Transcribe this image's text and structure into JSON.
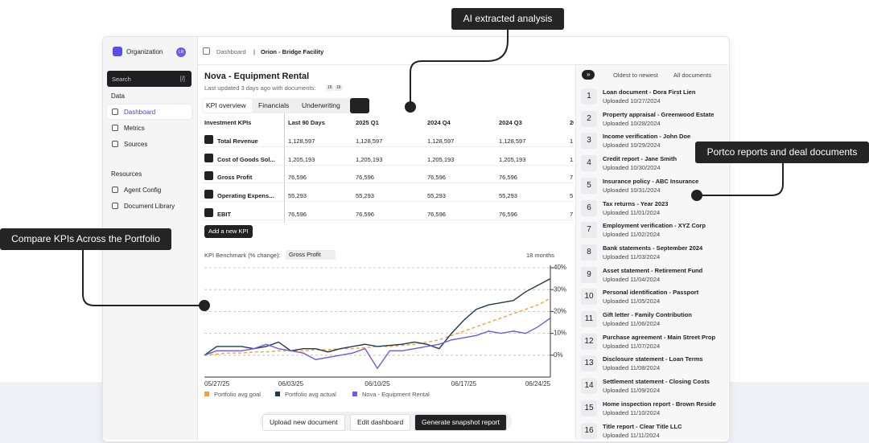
{
  "callouts": [
    "AI extracted analysis",
    "Portco reports and deal documents",
    "Compare KPIs Across the Portfolio"
  ],
  "sidebar": {
    "org": "Organization",
    "avatar": "LR",
    "search": "Search",
    "search_key": "[/]",
    "data_heading": "Data",
    "data_items": [
      "Dashboard",
      "Metrics",
      "Sources"
    ],
    "resources_heading": "Resources",
    "resources_items": [
      "Agent Config",
      "Document Library"
    ]
  },
  "breadcrumb": [
    "Dashboard",
    "|",
    "Orion - Bridge Facility"
  ],
  "header": {
    "title": "Nova - Equipment Rental",
    "updated": "Last updated 3 days ago with documents:",
    "badges": [
      "15",
      "16"
    ]
  },
  "tabs": [
    "KPI overview",
    "Financials",
    "Underwriting"
  ],
  "table": {
    "columns": [
      "Investment KPIs",
      "Last 90 Days",
      "2025 Q1",
      "2024 Q4",
      "2024 Q3",
      "20"
    ],
    "rows": [
      [
        "Total Revenue",
        "1,128,597",
        "1,128,597",
        "1,128,597",
        "1,128,597",
        "1,1"
      ],
      [
        "Cost of Goods Sol...",
        "1,205,193",
        "1,205,193",
        "1,205,193",
        "1,205,193",
        "1,"
      ],
      [
        "Gross Profit",
        "76,596",
        "76,596",
        "76,596",
        "76,596",
        "7"
      ],
      [
        "Operating Expens...",
        "55,293",
        "55,293",
        "55,293",
        "55,293",
        "5"
      ],
      [
        "EBIT",
        "76,596",
        "76,596",
        "76,596",
        "76,596",
        "7"
      ]
    ]
  },
  "add_kpi": "Add a new KPI",
  "chart_data": {
    "type": "line",
    "title": "KPI Benchmark (% change):",
    "metric": "Gross Profit",
    "range": "18 months",
    "categories": [
      "05/27/25",
      null,
      null,
      null,
      null,
      null,
      null,
      "06/03/25",
      null,
      null,
      null,
      null,
      null,
      null,
      "06/10/25",
      null,
      null,
      null,
      null,
      null,
      null,
      "06/17/25",
      null,
      null,
      null,
      null,
      null,
      null,
      "06/24/25"
    ],
    "series": [
      {
        "name": "Portfolio avg goal",
        "color": "#f5a03a",
        "dashed": true,
        "values": [
          0,
          0.5,
          1,
          1,
          1.5,
          1.5,
          2,
          2,
          2,
          2.5,
          2.5,
          3,
          3,
          3.5,
          4,
          4,
          4.5,
          5,
          6,
          7,
          9,
          11,
          13,
          15,
          17,
          19,
          21,
          23,
          26
        ]
      },
      {
        "name": "Portfolio avg actual",
        "color": "#1f3a4d",
        "values": [
          0,
          4,
          4,
          4,
          3,
          4,
          6,
          2,
          3,
          3,
          1.5,
          3,
          4,
          5,
          4,
          4.5,
          5,
          6,
          5,
          3,
          10,
          16,
          21,
          23,
          24,
          25,
          29,
          32,
          35
        ]
      },
      {
        "name": "Nova - Equipment Rental",
        "color": "#6b5ce7",
        "values": [
          0,
          2,
          2,
          2,
          3,
          5,
          3,
          2,
          1,
          -2,
          -1,
          0,
          1,
          3,
          -6,
          2,
          2,
          3,
          4,
          5,
          7,
          8,
          9,
          11,
          10,
          11,
          10,
          13,
          17
        ]
      }
    ],
    "ylim": [
      -10,
      40
    ],
    "yticks": [
      {
        "value": 0,
        "label": "0%"
      },
      {
        "value": 10,
        "label": "10%"
      },
      {
        "value": 20,
        "label": "20%"
      },
      {
        "value": 30,
        "label": "30%"
      },
      {
        "value": 40,
        "label": "40%"
      }
    ],
    "grid": true
  },
  "buttons": [
    "Upload new document",
    "Edit dashboard",
    "Generate snapshot report"
  ],
  "documents": {
    "toggle": "»",
    "sort": "Oldest to newest",
    "filter": "All documents",
    "items": [
      {
        "number": 1,
        "title": "Loan document - Dora First Lien",
        "uploaded": "Uploaded 10/27/2024"
      },
      {
        "number": 2,
        "title": "Property appraisal - Greenwood Estate",
        "uploaded": "Uploaded 10/28/2024"
      },
      {
        "number": 3,
        "title": "Income verification - John Doe",
        "uploaded": "Uploaded 10/29/2024"
      },
      {
        "number": 4,
        "title": "Credit report - Jane Smith",
        "uploaded": "Uploaded 10/30/2024"
      },
      {
        "number": 5,
        "title": "Insurance policy - ABC Insurance",
        "uploaded": "Uploaded 10/31/2024"
      },
      {
        "number": 6,
        "title": "Tax returns - Year 2023",
        "uploaded": "Uploaded 11/01/2024"
      },
      {
        "number": 7,
        "title": "Employment verification - XYZ Corp",
        "uploaded": "Uploaded 11/02/2024"
      },
      {
        "number": 8,
        "title": "Bank statements - September 2024",
        "uploaded": "Uploaded 11/03/2024"
      },
      {
        "number": 9,
        "title": "Asset statement - Retirement Fund",
        "uploaded": "Uploaded 11/04/2024"
      },
      {
        "number": 10,
        "title": "Personal identification - Passport",
        "uploaded": "Uploaded 11/05/2024"
      },
      {
        "number": 11,
        "title": "Gift letter - Family Contribution",
        "uploaded": "Uploaded 11/06/2024"
      },
      {
        "number": 12,
        "title": "Purchase agreement - Main Street Prop",
        "uploaded": "Uploaded 11/07/2024"
      },
      {
        "number": 13,
        "title": "Disclosure statement - Loan Terms",
        "uploaded": "Uploaded 11/08/2024"
      },
      {
        "number": 14,
        "title": "Settlement statement - Closing Costs",
        "uploaded": "Uploaded 11/09/2024"
      },
      {
        "number": 15,
        "title": "Home inspection report - Brown Reside",
        "uploaded": "Uploaded 11/10/2024"
      },
      {
        "number": 16,
        "title": "Title report - Clear Title LLC",
        "uploaded": "Uploaded 11/11/2024"
      }
    ]
  }
}
